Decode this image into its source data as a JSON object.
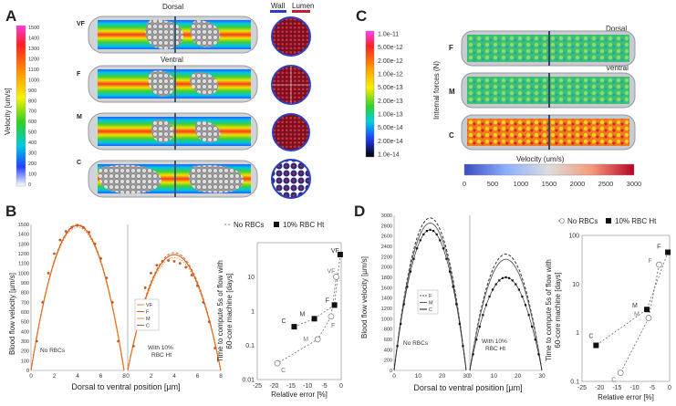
{
  "panels": {
    "A": {
      "letter": "A",
      "colorbar_title": "Velocity [um/s]",
      "colorbar_ticks": [
        "1500",
        "1400",
        "1300",
        "1200",
        "1100",
        "1000",
        "900",
        "800",
        "700",
        "600",
        "500",
        "400",
        "300",
        "200",
        "100",
        "0"
      ],
      "row_labels": [
        "VF",
        "F",
        "M",
        "C"
      ],
      "dorsal": "Dorsal",
      "ventral": "Ventral",
      "wall_label": "Wall",
      "lumen_label": "Lumen"
    },
    "C": {
      "letter": "C",
      "force_title": "Internal forces (N)",
      "force_ticks": [
        "1.0e-11",
        "5.00e-12",
        "2.00e-12",
        "1.00e-12",
        "5.00e-13",
        "2.00e-13",
        "1.00e-13",
        "5.00e-14",
        "2.00e-14",
        "1.0e-14"
      ],
      "row_labels": [
        "F",
        "M",
        "C"
      ],
      "dorsal": "Dorsal",
      "ventral": "Ventral",
      "velocity_title": "Velocity (um/s)",
      "velocity_ticks": [
        "0",
        "500",
        "1000",
        "1500",
        "2000",
        "2500",
        "3000"
      ]
    },
    "B": {
      "letter": "B",
      "ylabel": "Blood flow velocity [µm/s]",
      "xlabel": "Dorsal to ventral position [µm]",
      "no_rbc_label": "No RBCs",
      "with_rbc_label_1": "With 10%",
      "with_rbc_label_2": "RBC Ht",
      "legend_entries": [
        "VF",
        "F",
        "M",
        "C"
      ],
      "right_ylabel_1": "Time to compute 5s of flow with",
      "right_ylabel_2": "60-core machine [days]",
      "right_xlabel": "Relative error [%]",
      "right_legend_no": "No RBCs",
      "right_legend_with": "10% RBC Ht"
    },
    "D": {
      "letter": "D",
      "ylabel": "Blood flow velocity [µm/s]",
      "xlabel": "Dorsal to ventral position [µm]",
      "no_rbc_label": "No RBCs",
      "with_rbc_label_1": "With 10%",
      "with_rbc_label_2": "RBC Ht",
      "legend_entries": [
        "F",
        "M",
        "C"
      ],
      "right_ylabel_1": "Time to compute 5s of flow with",
      "right_ylabel_2": "60-core machine [days]",
      "right_xlabel": "Relative error [%]",
      "right_legend_no": "No RBCs",
      "right_legend_with": "10% RBC Ht"
    }
  },
  "chart_data": [
    {
      "id": "B-profile",
      "type": "line",
      "xlabel": "Dorsal to ventral position [µm]",
      "ylabel": "Blood flow velocity [µm/s]",
      "ylim": [
        0,
        1500
      ],
      "yticks": [
        0,
        100,
        200,
        300,
        400,
        500,
        600,
        700,
        800,
        900,
        1000,
        1100,
        1200,
        1300,
        1400,
        1500
      ],
      "subplots": [
        {
          "label": "No RBCs",
          "xlim": [
            0,
            8
          ],
          "xticks": [
            0,
            2,
            4,
            6,
            8
          ],
          "series": [
            {
              "name": "VF",
              "peak": 1500,
              "width": 8
            },
            {
              "name": "F",
              "peak": 1490,
              "width": 8
            },
            {
              "name": "M",
              "peak": 1470,
              "width": 8
            },
            {
              "name": "C",
              "x": [
                0.5,
                1,
                1.5,
                2,
                2.5,
                3,
                3.5,
                4,
                4.5,
                5,
                5.5,
                6,
                6.5,
                7,
                7.5
              ],
              "y": [
                300,
                700,
                1000,
                1200,
                1340,
                1430,
                1470,
                1490,
                1470,
                1420,
                1300,
                1150,
                950,
                700,
                300
              ]
            }
          ]
        },
        {
          "label": "With 10% RBC Ht",
          "xlim": [
            0,
            8
          ],
          "xticks": [
            0,
            2,
            4,
            6,
            8
          ],
          "series": [
            {
              "name": "VF",
              "peak": 1210,
              "width": 8
            },
            {
              "name": "F",
              "peak": 1190,
              "width": 8
            },
            {
              "name": "M",
              "peak": 1160,
              "width": 8
            },
            {
              "name": "C",
              "x": [
                0.5,
                1,
                1.5,
                2,
                2.5,
                3,
                3.5,
                4,
                4.5,
                5,
                5.5,
                6,
                6.5,
                7,
                7.5
              ],
              "y": [
                250,
                600,
                850,
                1000,
                1080,
                1120,
                1130,
                1120,
                1100,
                1060,
                980,
                870,
                700,
                500,
                230
              ]
            }
          ]
        }
      ]
    },
    {
      "id": "B-cost",
      "type": "scatter",
      "xlabel": "Relative error [%]",
      "ylabel": "Time to compute 5s of flow with 60-core machine [days]",
      "xlim": [
        -25,
        0
      ],
      "ylim": [
        0.01,
        100
      ],
      "yscale": "log",
      "xticks": [
        -25,
        -20,
        -15,
        -10,
        -5,
        0
      ],
      "yticks": [
        0.01,
        0.1,
        1,
        10
      ],
      "series": [
        {
          "name": "No RBCs",
          "labels": [
            "VF",
            "F",
            "M",
            "C"
          ],
          "x": [
            -1.5,
            -3,
            -7,
            -19
          ],
          "y": [
            10,
            0.7,
            0.15,
            0.03
          ]
        },
        {
          "name": "10% RBC Ht",
          "labels": [
            "VF",
            "F",
            "M",
            "C"
          ],
          "x": [
            -0.3,
            -2,
            -8,
            -14
          ],
          "y": [
            45,
            1.5,
            0.6,
            0.35
          ]
        }
      ]
    },
    {
      "id": "D-profile",
      "type": "line",
      "xlabel": "Dorsal to ventral position [µm]",
      "ylabel": "Blood flow velocity [µm/s]",
      "ylim": [
        0,
        3000
      ],
      "yticks": [
        0,
        200,
        400,
        600,
        800,
        1000,
        1200,
        1400,
        1600,
        1800,
        2000,
        2200,
        2400,
        2600,
        2800,
        3000
      ],
      "subplots": [
        {
          "label": "No RBCs",
          "xlim": [
            0,
            30
          ],
          "xticks": [
            0,
            10,
            20,
            30
          ],
          "series": [
            {
              "name": "F",
              "peak": 2950,
              "width": 30
            },
            {
              "name": "M",
              "peak": 2850,
              "width": 30
            },
            {
              "name": "C",
              "peak": 2720,
              "width": 30
            }
          ]
        },
        {
          "label": "With 10% RBC Ht",
          "xlim": [
            0,
            30
          ],
          "xticks": [
            0,
            10,
            20,
            30
          ],
          "series": [
            {
              "name": "F",
              "peak": 2250,
              "width": 30
            },
            {
              "name": "M",
              "peak": 2150,
              "width": 30
            },
            {
              "name": "C",
              "peak": 1800,
              "width": 30
            }
          ]
        }
      ]
    },
    {
      "id": "D-cost",
      "type": "scatter",
      "xlabel": "Relative error [%]",
      "ylabel": "Time to compute 5s of flow with 60-core machine [days]",
      "xlim": [
        -25,
        0
      ],
      "ylim": [
        0.1,
        100
      ],
      "yscale": "log",
      "xticks": [
        -25,
        -20,
        -15,
        -10,
        -5,
        0
      ],
      "yticks": [
        0.1,
        1,
        10,
        100
      ],
      "series": [
        {
          "name": "No RBCs",
          "labels": [
            "F",
            "M",
            "C"
          ],
          "x": [
            -3,
            -6,
            -14
          ],
          "y": [
            25,
            2,
            0.15
          ]
        },
        {
          "name": "10% RBC Ht",
          "labels": [
            "F",
            "M",
            "C"
          ],
          "x": [
            -0.5,
            -6.5,
            -21
          ],
          "y": [
            45,
            3,
            0.55
          ]
        }
      ]
    }
  ]
}
